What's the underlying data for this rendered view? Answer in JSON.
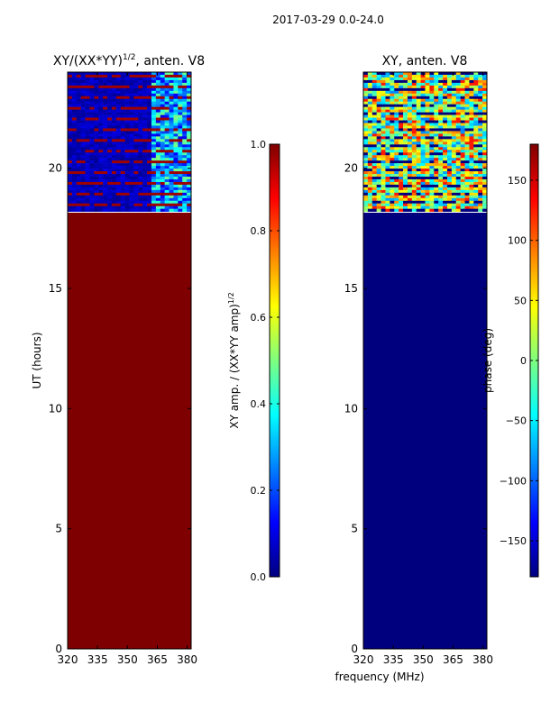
{
  "suptitle": "2017-03-29 0.0-24.0",
  "colors": {
    "jet": [
      "#00007f",
      "#0000ff",
      "#007fff",
      "#00ffff",
      "#7fff7f",
      "#ffff00",
      "#ff7f00",
      "#ff0000",
      "#7f0000"
    ],
    "flagged_amp": "#7f0000",
    "flagged_phase": "#00007f"
  },
  "chart_data": [
    {
      "type": "heatmap",
      "title": "XY/(XX*YY)",
      "title_exp": "1/2",
      "title_suffix": ", anten. V8",
      "xlabel": "",
      "ylabel": "UT (hours)",
      "xlim": [
        320,
        382
      ],
      "ylim": [
        0,
        24
      ],
      "xticks": [
        320,
        335,
        350,
        365,
        380
      ],
      "yticks": [
        0,
        5,
        10,
        15,
        20
      ],
      "data_start_ut": 18.2,
      "flagged_value": 1.0,
      "colorbar": {
        "label": "XY amp. / (XX*YY amp)",
        "label_exp": "1/2",
        "range": [
          0.0,
          1.0
        ],
        "ticks": [
          "0.0",
          "0.2",
          "0.4",
          "0.6",
          "0.8",
          "1.0"
        ]
      }
    },
    {
      "type": "heatmap",
      "title": "XY, anten. V8",
      "xlabel": "frequency (MHz)",
      "ylabel": "",
      "xlim": [
        320,
        382
      ],
      "ylim": [
        0,
        24
      ],
      "xticks": [
        320,
        335,
        350,
        365,
        380
      ],
      "yticks": [
        0,
        5,
        10,
        15,
        20
      ],
      "data_start_ut": 18.2,
      "flagged_value": -180,
      "colorbar": {
        "label": "phase (deg)",
        "range": [
          -180,
          180
        ],
        "ticks": [
          "−150",
          "−100",
          "−50",
          "0",
          "50",
          "100",
          "150"
        ]
      }
    }
  ]
}
